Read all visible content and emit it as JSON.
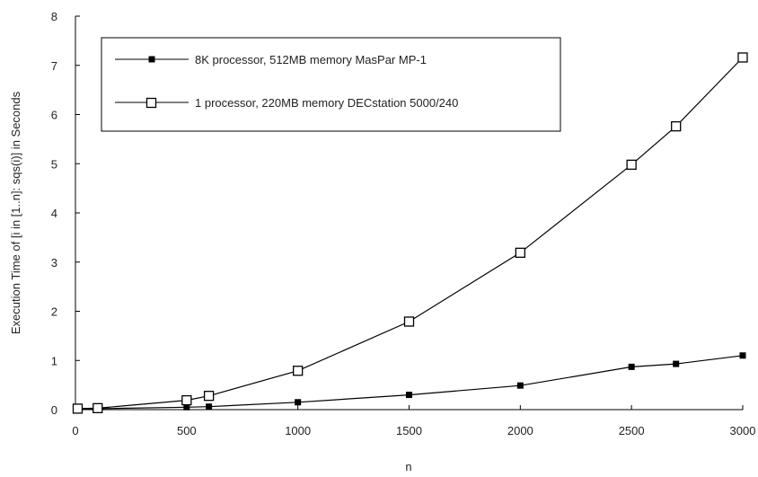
{
  "chart_data": {
    "type": "line",
    "title": "",
    "xlabel": "n",
    "ylabel": "Execution Time of [i in [1..n]: sqs(i)] in Seconds",
    "xlim": [
      0,
      3000
    ],
    "ylim": [
      0,
      8
    ],
    "x_ticks": [
      0,
      500,
      1000,
      1500,
      2000,
      2500,
      3000
    ],
    "y_ticks": [
      0,
      1,
      2,
      3,
      4,
      5,
      6,
      7,
      8
    ],
    "grid": false,
    "legend_position": "top-left",
    "series": [
      {
        "name": "8K processor, 512MB memory MasPar MP-1",
        "marker": "filled-square",
        "color": "#000000",
        "points": [
          [
            10,
            0.0
          ],
          [
            100,
            0.02
          ],
          [
            500,
            0.05
          ],
          [
            600,
            0.06
          ],
          [
            1000,
            0.15
          ],
          [
            1500,
            0.3
          ],
          [
            2000,
            0.49
          ],
          [
            2500,
            0.87
          ],
          [
            2700,
            0.93
          ],
          [
            3000,
            1.1
          ]
        ]
      },
      {
        "name": "1 processor, 220MB memory DECstation 5000/240",
        "marker": "open-square",
        "color": "#000000",
        "points": [
          [
            10,
            0.02
          ],
          [
            100,
            0.03
          ],
          [
            500,
            0.19
          ],
          [
            600,
            0.28
          ],
          [
            1000,
            0.79
          ],
          [
            1500,
            1.79
          ],
          [
            2000,
            3.19
          ],
          [
            2500,
            4.98
          ],
          [
            2700,
            5.76
          ],
          [
            3000,
            7.16
          ]
        ]
      }
    ]
  }
}
